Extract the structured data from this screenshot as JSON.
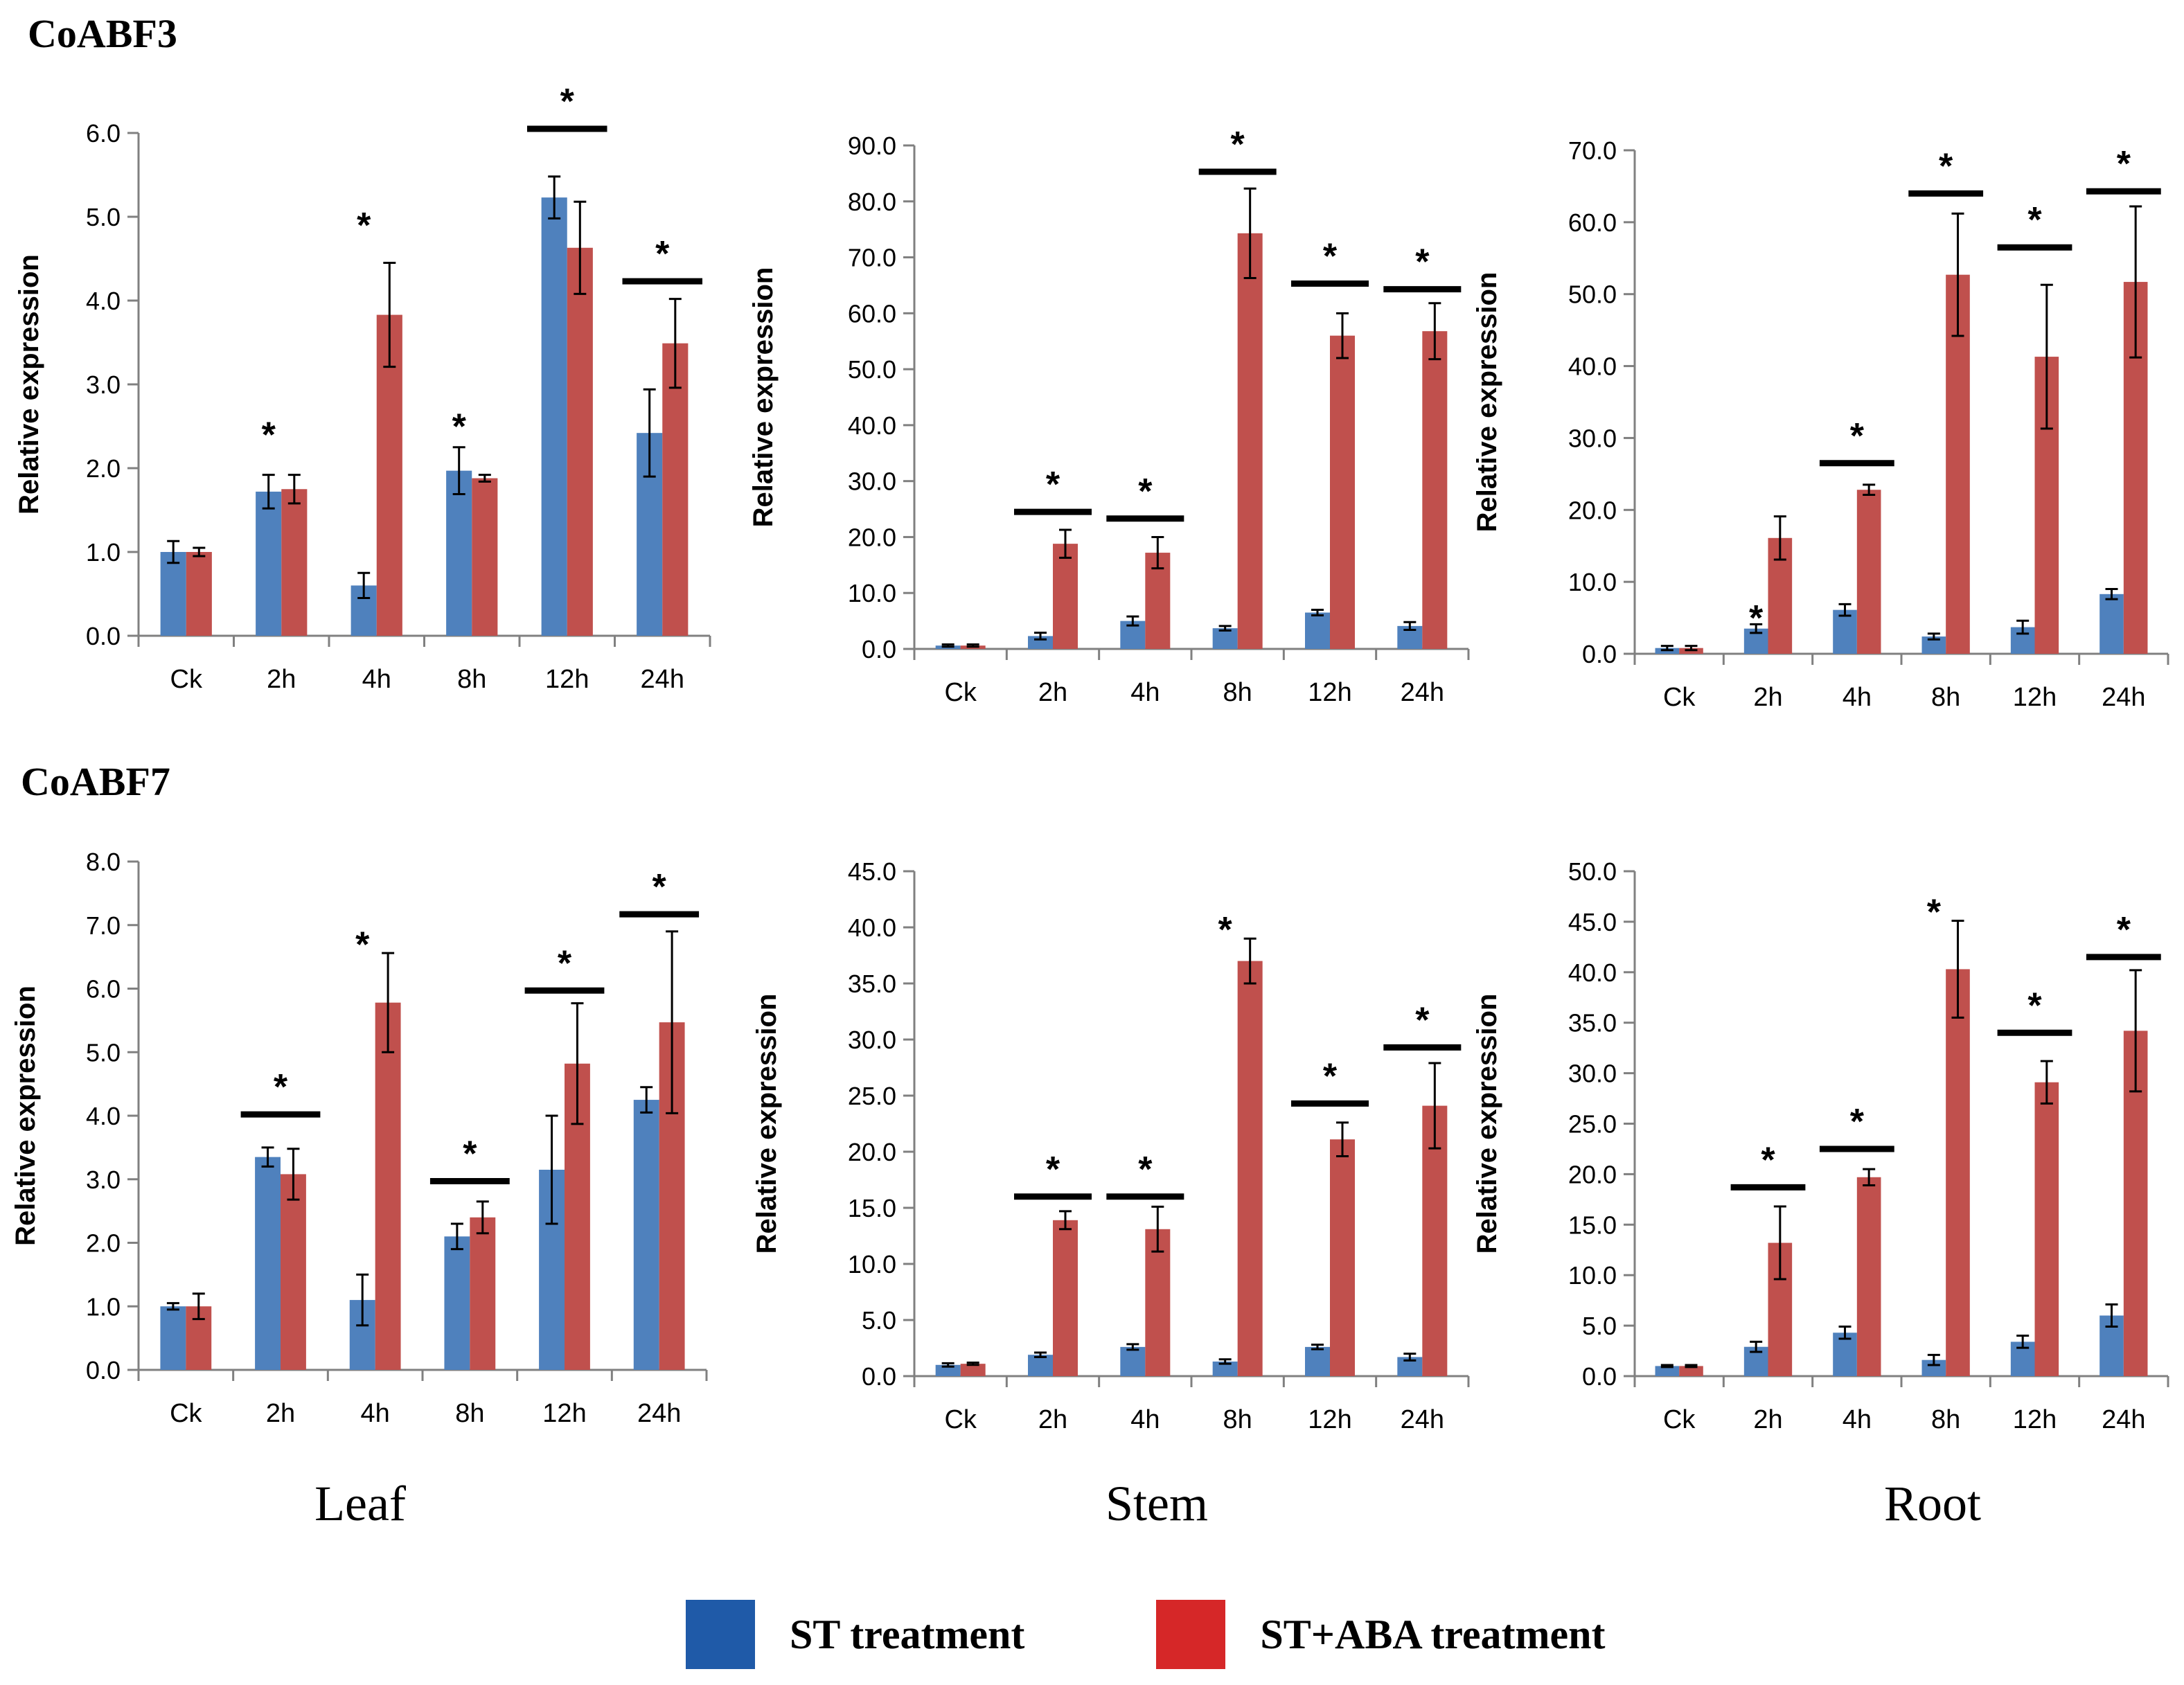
{
  "titles": {
    "gene1": "CoABF3",
    "gene2": "CoABF7"
  },
  "column_labels": {
    "leaf": "Leaf",
    "stem": "Stem",
    "root": "Root"
  },
  "legend": {
    "st": {
      "label": "ST treatment",
      "color": "#1f5aa8"
    },
    "staba": {
      "label": "ST+ABA treatment",
      "color": "#d62728"
    }
  },
  "colors": {
    "st_bar": "#4f81bd",
    "staba_bar": "#c0504d"
  },
  "chart_data": [
    {
      "type": "bar",
      "gene": "CoABF3",
      "tissue": "Leaf",
      "ylabel": "Relative expression",
      "categories": [
        "Ck",
        "2h",
        "4h",
        "8h",
        "12h",
        "24h"
      ],
      "ylim": [
        0,
        6
      ],
      "yticks": [
        "0.0",
        "1.0",
        "2.0",
        "3.0",
        "4.0",
        "5.0",
        "6.0"
      ],
      "series": [
        {
          "name": "ST treatment",
          "values": [
            1.0,
            1.72,
            0.6,
            1.97,
            5.23,
            2.42
          ],
          "errors": [
            0.13,
            0.2,
            0.15,
            0.28,
            0.25,
            0.52
          ]
        },
        {
          "name": "ST+ABA treatment",
          "values": [
            1.0,
            1.75,
            3.83,
            1.88,
            4.63,
            3.49
          ],
          "errors": [
            0.05,
            0.17,
            0.62,
            0.04,
            0.55,
            0.53
          ]
        }
      ],
      "annotations": [
        {
          "index": 1,
          "label": "*",
          "bracket": false,
          "y": 2.4
        },
        {
          "index": 2,
          "label": "*",
          "bracket": false,
          "y": 4.9
        },
        {
          "index": 3,
          "label": "*",
          "bracket": false,
          "y": 2.5
        },
        {
          "index": 4,
          "label": "*",
          "bracket": true,
          "y": 6.05
        },
        {
          "index": 5,
          "label": "*",
          "bracket": true,
          "y": 4.23
        }
      ]
    },
    {
      "type": "bar",
      "gene": "CoABF3",
      "tissue": "Stem",
      "ylabel": "Relative expression",
      "categories": [
        "Ck",
        "2h",
        "4h",
        "8h",
        "12h",
        "24h"
      ],
      "ylim": [
        0,
        90
      ],
      "yticks": [
        "0.0",
        "10.0",
        "20.0",
        "30.0",
        "40.0",
        "50.0",
        "60.0",
        "70.0",
        "80.0",
        "90.0"
      ],
      "series": [
        {
          "name": "ST treatment",
          "values": [
            0.6,
            2.3,
            5.0,
            3.7,
            6.5,
            4.1
          ],
          "errors": [
            0.2,
            0.6,
            0.8,
            0.4,
            0.5,
            0.7
          ]
        },
        {
          "name": "ST+ABA treatment",
          "values": [
            0.6,
            18.8,
            17.2,
            74.3,
            56.0,
            56.8
          ],
          "errors": [
            0.2,
            2.5,
            2.8,
            8.0,
            4.0,
            5.0
          ]
        }
      ],
      "annotations": [
        {
          "index": 1,
          "label": "*",
          "bracket": true,
          "y": 24.5
        },
        {
          "index": 2,
          "label": "*",
          "bracket": true,
          "y": 23.3
        },
        {
          "index": 3,
          "label": "*",
          "bracket": true,
          "y": 85.3
        },
        {
          "index": 4,
          "label": "*",
          "bracket": true,
          "y": 65.3
        },
        {
          "index": 5,
          "label": "*",
          "bracket": true,
          "y": 64.3
        }
      ]
    },
    {
      "type": "bar",
      "gene": "CoABF3",
      "tissue": "Root",
      "ylabel": "Relative expression",
      "categories": [
        "Ck",
        "2h",
        "4h",
        "8h",
        "12h",
        "24h"
      ],
      "ylim": [
        0,
        70
      ],
      "yticks": [
        "0.0",
        "10.0",
        "20.0",
        "30.0",
        "40.0",
        "50.0",
        "60.0",
        "70.0"
      ],
      "series": [
        {
          "name": "ST treatment",
          "values": [
            0.8,
            3.5,
            6.1,
            2.4,
            3.7,
            8.3
          ],
          "errors": [
            0.3,
            0.6,
            0.8,
            0.4,
            0.9,
            0.7
          ]
        },
        {
          "name": "ST+ABA treatment",
          "values": [
            0.8,
            16.1,
            22.8,
            52.7,
            41.3,
            51.7
          ],
          "errors": [
            0.3,
            3.0,
            0.7,
            8.5,
            10.0,
            10.5
          ]
        }
      ],
      "annotations": [
        {
          "index": 1,
          "label": "*",
          "bracket": false,
          "y": 5.0
        },
        {
          "index": 2,
          "label": "*",
          "bracket": true,
          "y": 26.5
        },
        {
          "index": 3,
          "label": "*",
          "bracket": true,
          "y": 64.0
        },
        {
          "index": 4,
          "label": "*",
          "bracket": true,
          "y": 56.5
        },
        {
          "index": 5,
          "label": "*",
          "bracket": true,
          "y": 64.3
        }
      ]
    },
    {
      "type": "bar",
      "gene": "CoABF7",
      "tissue": "Leaf",
      "ylabel": "Relative expression",
      "categories": [
        "Ck",
        "2h",
        "4h",
        "8h",
        "12h",
        "24h"
      ],
      "ylim": [
        0,
        8
      ],
      "yticks": [
        "0.0",
        "1.0",
        "2.0",
        "3.0",
        "4.0",
        "5.0",
        "6.0",
        "7.0",
        "8.0"
      ],
      "series": [
        {
          "name": "ST treatment",
          "values": [
            1.0,
            3.35,
            1.1,
            2.1,
            3.15,
            4.25
          ],
          "errors": [
            0.05,
            0.15,
            0.4,
            0.2,
            0.85,
            0.2
          ]
        },
        {
          "name": "ST+ABA treatment",
          "values": [
            1.0,
            3.08,
            5.78,
            2.4,
            4.82,
            5.47
          ],
          "errors": [
            0.2,
            0.4,
            0.78,
            0.25,
            0.95,
            1.43
          ]
        }
      ],
      "annotations": [
        {
          "index": 1,
          "label": "*",
          "bracket": true,
          "y": 4.02
        },
        {
          "index": 2,
          "label": "*",
          "bracket": false,
          "y": 6.7
        },
        {
          "index": 3,
          "label": "*",
          "bracket": true,
          "y": 2.97
        },
        {
          "index": 4,
          "label": "*",
          "bracket": true,
          "y": 5.97
        },
        {
          "index": 5,
          "label": "*",
          "bracket": true,
          "y": 7.17
        }
      ]
    },
    {
      "type": "bar",
      "gene": "CoABF7",
      "tissue": "Stem",
      "ylabel": "Relative expression",
      "categories": [
        "Ck",
        "2h",
        "4h",
        "8h",
        "12h",
        "24h"
      ],
      "ylim": [
        0,
        45
      ],
      "yticks": [
        "0.0",
        "5.0",
        "10.0",
        "15.0",
        "20.0",
        "25.0",
        "30.0",
        "35.0",
        "40.0",
        "45.0"
      ],
      "series": [
        {
          "name": "ST treatment",
          "values": [
            1.0,
            1.9,
            2.6,
            1.3,
            2.6,
            1.7
          ],
          "errors": [
            0.15,
            0.2,
            0.25,
            0.2,
            0.2,
            0.3
          ]
        },
        {
          "name": "ST+ABA treatment",
          "values": [
            1.1,
            13.9,
            13.1,
            37.0,
            21.1,
            24.1
          ],
          "errors": [
            0.1,
            0.8,
            2.0,
            2.0,
            1.5,
            3.8
          ]
        }
      ],
      "annotations": [
        {
          "index": 1,
          "label": "*",
          "bracket": true,
          "y": 16.0
        },
        {
          "index": 2,
          "label": "*",
          "bracket": true,
          "y": 16.0
        },
        {
          "index": 3,
          "label": "*",
          "bracket": false,
          "y": 39.8
        },
        {
          "index": 4,
          "label": "*",
          "bracket": true,
          "y": 24.3
        },
        {
          "index": 5,
          "label": "*",
          "bracket": true,
          "y": 29.3
        }
      ]
    },
    {
      "type": "bar",
      "gene": "CoABF7",
      "tissue": "Root",
      "ylabel": "Relative expression",
      "categories": [
        "Ck",
        "2h",
        "4h",
        "8h",
        "12h",
        "24h"
      ],
      "ylim": [
        0,
        50
      ],
      "yticks": [
        "0.0",
        "5.0",
        "10.0",
        "15.0",
        "20.0",
        "25.0",
        "30.0",
        "35.0",
        "40.0",
        "45.0",
        "50.0"
      ],
      "series": [
        {
          "name": "ST treatment",
          "values": [
            1.0,
            2.9,
            4.3,
            1.6,
            3.4,
            6.0
          ],
          "errors": [
            0.1,
            0.5,
            0.6,
            0.5,
            0.6,
            1.1
          ]
        },
        {
          "name": "ST+ABA treatment",
          "values": [
            1.0,
            13.2,
            19.7,
            40.3,
            29.1,
            34.2
          ],
          "errors": [
            0.1,
            3.6,
            0.8,
            4.8,
            2.1,
            6.0
          ]
        }
      ],
      "annotations": [
        {
          "index": 1,
          "label": "*",
          "bracket": true,
          "y": 18.7
        },
        {
          "index": 2,
          "label": "*",
          "bracket": true,
          "y": 22.5
        },
        {
          "index": 3,
          "label": "*",
          "bracket": false,
          "y": 46.0
        },
        {
          "index": 4,
          "label": "*",
          "bracket": true,
          "y": 34.0
        },
        {
          "index": 5,
          "label": "*",
          "bracket": true,
          "y": 41.5
        }
      ]
    }
  ]
}
